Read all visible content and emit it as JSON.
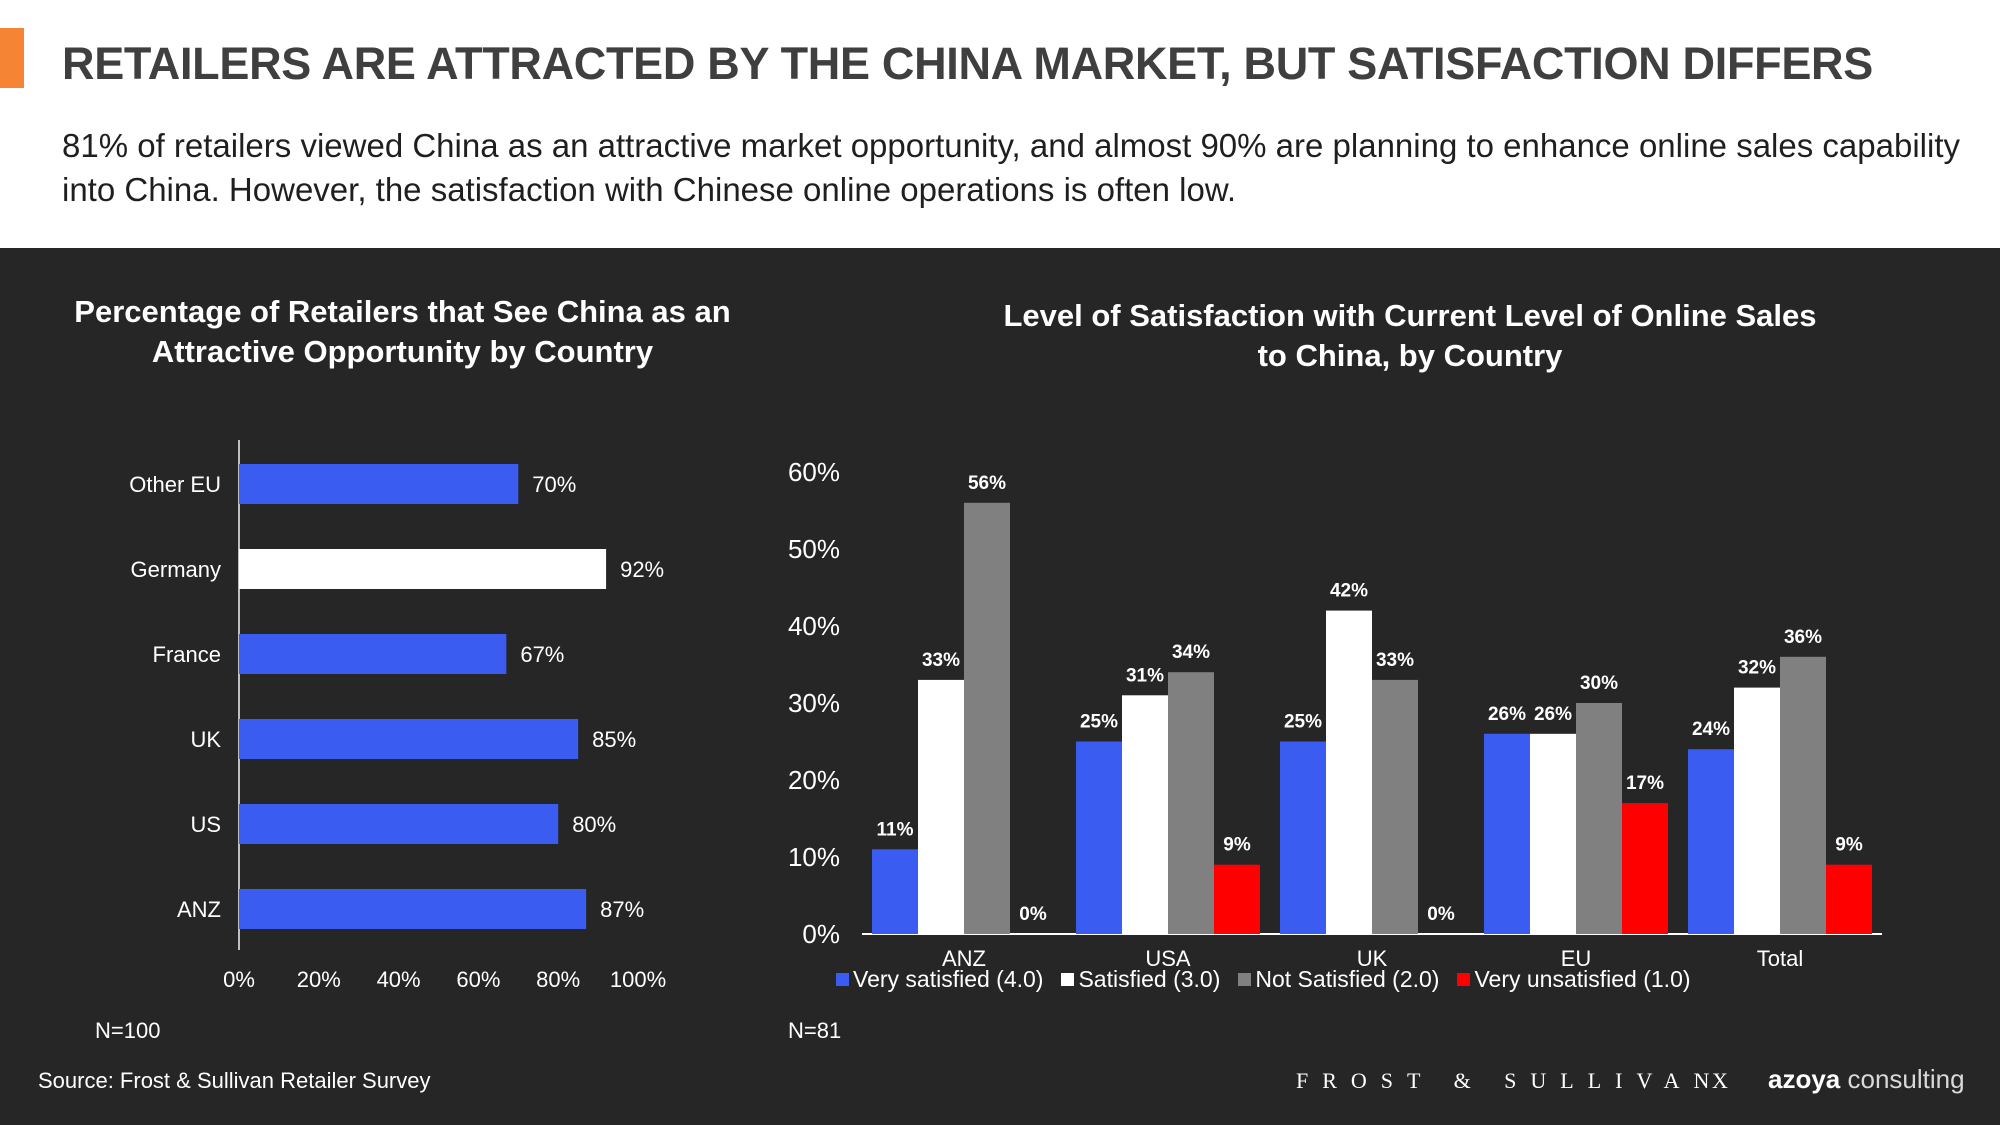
{
  "page": {
    "title": "RETAILERS ARE ATTRACTED BY THE CHINA MARKET, BUT SATISFACTION DIFFERS",
    "subtitle": "81% of retailers viewed China as an attractive market opportunity, and almost 90% are planning to enhance online sales capability into China. However, the satisfaction with Chinese online operations is often low.",
    "accent_color": "#f58534",
    "source": "Source: Frost & Sullivan Retailer Survey",
    "brand_left": "FROST & SULLIVAN",
    "brand_x": "X",
    "brand_right_bold": "azoya",
    "brand_right_light": " consulting"
  },
  "chart_data": [
    {
      "type": "bar",
      "orientation": "horizontal",
      "title": "Percentage of Retailers that See China as an Attractive Opportunity by Country",
      "categories": [
        "Other EU",
        "Germany",
        "France",
        "UK",
        "US",
        "ANZ"
      ],
      "values": [
        70,
        92,
        67,
        85,
        80,
        87
      ],
      "value_labels": [
        "70%",
        "92%",
        "67%",
        "85%",
        "80%",
        "87%"
      ],
      "bar_colors": [
        "#3b5cf0",
        "#ffffff",
        "#3b5cf0",
        "#3b5cf0",
        "#3b5cf0",
        "#3b5cf0"
      ],
      "xlim": [
        0,
        100
      ],
      "xticks": [
        "0%",
        "20%",
        "40%",
        "60%",
        "80%",
        "100%"
      ],
      "grid": false,
      "note": "N=100"
    },
    {
      "type": "bar",
      "orientation": "vertical",
      "title": "Level of Satisfaction with Current Level of Online Sales to China, by Country",
      "categories": [
        "ANZ",
        "USA",
        "UK",
        "EU",
        "Total"
      ],
      "series": [
        {
          "name": "Very satisfied (4.0)",
          "color": "#3b5cf0",
          "values": [
            11,
            25,
            25,
            26,
            24
          ],
          "labels": [
            "11%",
            "25%",
            "25%",
            "26%",
            "24%"
          ]
        },
        {
          "name": "Satisfied (3.0)",
          "color": "#ffffff",
          "values": [
            33,
            31,
            42,
            26,
            32
          ],
          "labels": [
            "33%",
            "31%",
            "42%",
            "26%",
            "32%"
          ]
        },
        {
          "name": "Not Satisfied (2.0)",
          "color": "#808080",
          "values": [
            56,
            34,
            33,
            30,
            36
          ],
          "labels": [
            "56%",
            "34%",
            "33%",
            "30%",
            "36%"
          ]
        },
        {
          "name": "Very unsatisfied (1.0)",
          "color": "#ff0000",
          "values": [
            0,
            9,
            0,
            17,
            9
          ],
          "labels": [
            "0%",
            "9%",
            "0%",
            "17%",
            "9%"
          ]
        }
      ],
      "ylim": [
        0,
        60
      ],
      "yticks": [
        "0%",
        "10%",
        "20%",
        "30%",
        "40%",
        "50%",
        "60%"
      ],
      "legend": "bottom",
      "grid": false,
      "note": "N=81"
    }
  ]
}
